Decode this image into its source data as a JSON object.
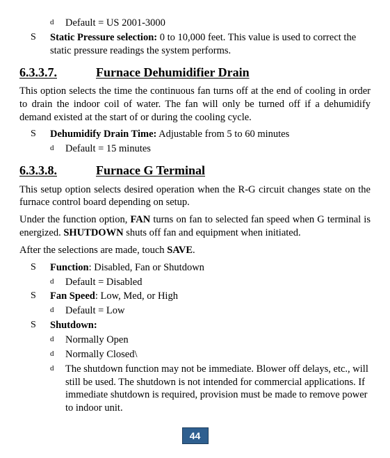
{
  "top": {
    "default_us": "Default = US 2001-3000",
    "static_pressure_label": "Static Pressure selection:",
    "static_pressure_text": " 0 to 10,000 feet. This value is used to correct the static pressure readings the system performs."
  },
  "sec7": {
    "num": "6.3.3.7.",
    "title": "Furnace Dehumidifier Drain",
    "para": "This option selects the time the continuous fan turns off at the end of cooling in order to drain the indoor coil of water. The fan will only be turned off if a dehumidify demand existed at the start of or during the cooling cycle.",
    "bullet_label": "Dehumidify Drain Time:",
    "bullet_text": " Adjustable from 5 to 60 minutes",
    "default": "Default = 15 minutes"
  },
  "sec8": {
    "num": "6.3.3.8.",
    "title": "Furnace G Terminal",
    "para1_a": "This setup option selects desired operation when the R-G circuit changes state on the furnace control board depending on setup.",
    "para2_a": "Under the function option, ",
    "para2_fan": "FAN",
    "para2_b": " turns on fan to selected fan speed when G terminal is energized. ",
    "para2_shutdown": "SHUTDOWN",
    "para2_c": " shuts off fan and equipment when initiated.",
    "para3_a": "After the selections are made, touch ",
    "para3_save": "SAVE",
    "para3_b": ".",
    "function_label": "Function",
    "function_text": ": Disabled, Fan or Shutdown",
    "function_default": "Default = Disabled",
    "fanspeed_label": "Fan Speed",
    "fanspeed_text": ": Low, Med, or High",
    "fanspeed_default": "Default = Low",
    "shutdown_label": "Shutdown:",
    "shutdown_open": "Normally Open",
    "shutdown_closed": "Normally Closed\\",
    "shutdown_note": "The shutdown function may not be immediate. Blower off delays, etc., will still be used. The shutdown is not intended for commercial applications. If immediate shutdown is required, provision must be made to remove power to indoor unit."
  },
  "page": "44"
}
